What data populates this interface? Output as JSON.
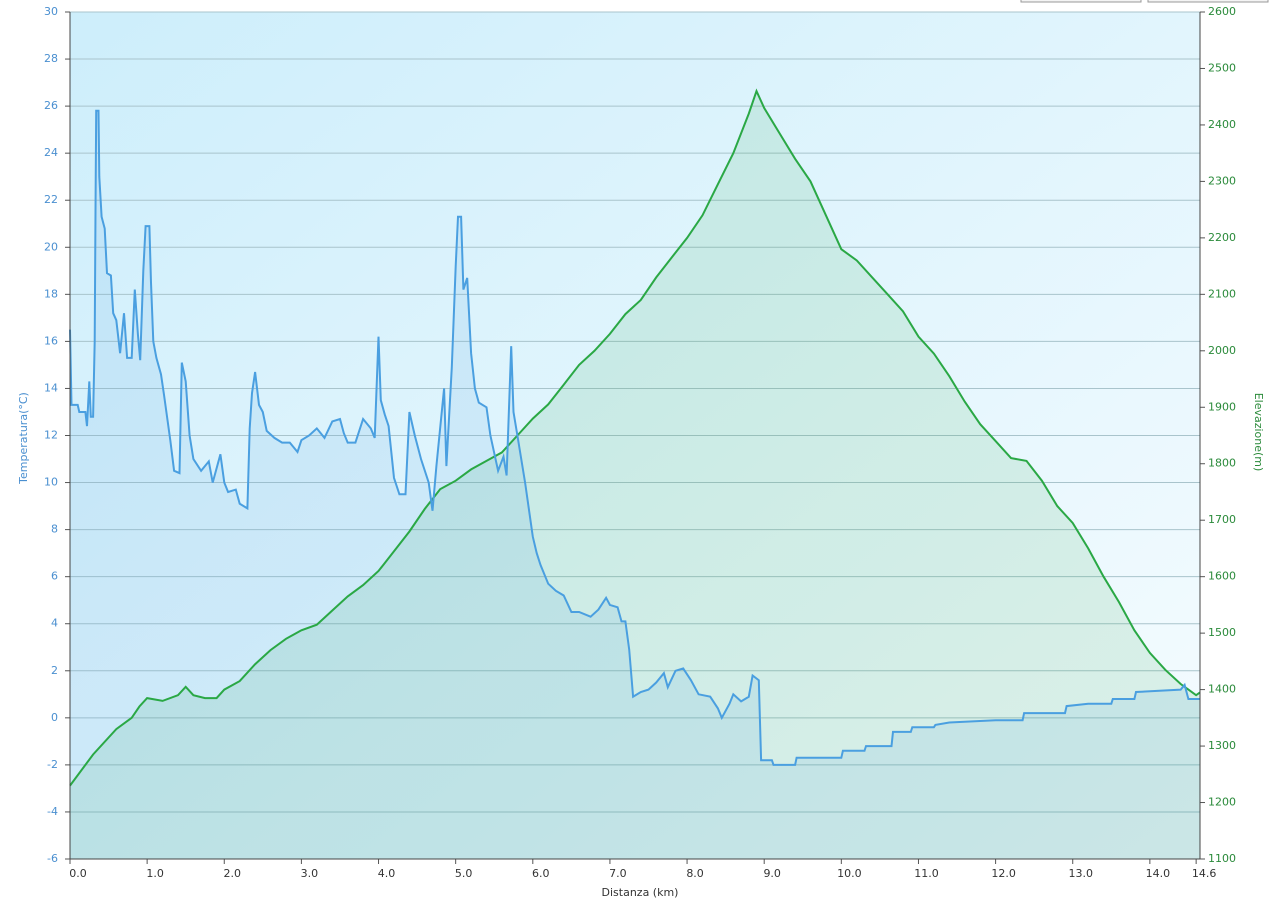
{
  "chart_data": {
    "type": "line",
    "x_label": "Distanza  (km)",
    "y_label": "Temperatura(°C)",
    "y2_label": "Elevazione(m)",
    "xlim": [
      0,
      14.65
    ],
    "xticks": [
      {
        "value": 0,
        "label": "0.0"
      },
      {
        "value": 1,
        "label": "1.0"
      },
      {
        "value": 2,
        "label": "2.0"
      },
      {
        "value": 3,
        "label": "3.0"
      },
      {
        "value": 4,
        "label": "4.0"
      },
      {
        "value": 5,
        "label": "5.0"
      },
      {
        "value": 6,
        "label": "6.0"
      },
      {
        "value": 7,
        "label": "7.0"
      },
      {
        "value": 8,
        "label": "8.0"
      },
      {
        "value": 9,
        "label": "9.0"
      },
      {
        "value": 10,
        "label": "10.0"
      },
      {
        "value": 11,
        "label": "11.0"
      },
      {
        "value": 12,
        "label": "12.0"
      },
      {
        "value": 13,
        "label": "13.0"
      },
      {
        "value": 14,
        "label": "14.0"
      },
      14.6
    ],
    "ylim": [
      -6,
      30
    ],
    "yticks": [
      -6,
      -4,
      -2,
      0,
      2,
      4,
      6,
      8,
      10,
      12,
      14,
      16,
      18,
      20,
      22,
      24,
      26,
      28,
      30
    ],
    "y2lim": [
      1100,
      2600
    ],
    "y2ticks": [
      1100,
      1200,
      1300,
      1400,
      1500,
      1600,
      1700,
      1800,
      1900,
      2000,
      2100,
      2200,
      2300,
      2400,
      2500,
      2600
    ],
    "grid": true,
    "series": [
      {
        "name": "Temperatura",
        "color": "#4a9fe0",
        "axis": "y",
        "x": [
          0,
          0.02,
          0.1,
          0.12,
          0.2,
          0.22,
          0.25,
          0.27,
          0.3,
          0.32,
          0.33,
          0.34,
          0.37,
          0.38,
          0.41,
          0.45,
          0.48,
          0.53,
          0.56,
          0.6,
          0.65,
          0.7,
          0.74,
          0.8,
          0.84,
          0.88,
          0.91,
          0.95,
          0.98,
          1.03,
          1.05,
          1.08,
          1.12,
          1.18,
          1.22,
          1.3,
          1.35,
          1.42,
          1.45,
          1.5,
          1.55,
          1.6,
          1.7,
          1.8,
          1.85,
          1.95,
          2.0,
          2.05,
          2.15,
          2.2,
          2.3,
          2.33,
          2.36,
          2.4,
          2.45,
          2.5,
          2.55,
          2.65,
          2.75,
          2.85,
          2.95,
          3.0,
          3.1,
          3.2,
          3.3,
          3.4,
          3.5,
          3.55,
          3.6,
          3.7,
          3.8,
          3.9,
          3.95,
          4.0,
          4.03,
          4.08,
          4.13,
          4.2,
          4.27,
          4.35,
          4.4,
          4.47,
          4.55,
          4.65,
          4.7,
          4.75,
          4.85,
          4.88,
          4.95,
          5.0,
          5.03,
          5.07,
          5.1,
          5.15,
          5.2,
          5.25,
          5.3,
          5.4,
          5.45,
          5.55,
          5.62,
          5.66,
          5.72,
          5.75,
          5.8,
          5.9,
          6.0,
          6.05,
          6.1,
          6.2,
          6.3,
          6.4,
          6.5,
          6.6,
          6.75,
          6.85,
          6.95,
          7.0,
          7.1,
          7.15,
          7.2,
          7.25,
          7.3,
          7.4,
          7.5,
          7.6,
          7.7,
          7.75,
          7.85,
          7.95,
          8.05,
          8.15,
          8.3,
          8.4,
          8.45,
          8.55,
          8.6,
          8.7,
          8.8,
          8.85,
          8.93,
          8.96,
          9.1,
          9.12,
          9.4,
          9.42,
          10.0,
          10.02,
          10.3,
          10.32,
          10.65,
          10.67,
          10.9,
          10.92,
          11.2,
          11.22,
          11.4,
          12.0,
          12.35,
          12.37,
          12.9,
          12.92,
          13.2,
          13.5,
          13.52,
          13.8,
          13.82,
          14.4,
          14.45,
          14.5,
          14.65
        ],
        "values": [
          16.5,
          13.3,
          13.3,
          13,
          13,
          12.4,
          14.3,
          12.8,
          12.8,
          16,
          21.5,
          25.8,
          25.8,
          23,
          21.3,
          20.8,
          18.9,
          18.8,
          17.2,
          16.9,
          15.5,
          17.2,
          15.3,
          15.3,
          18.2,
          16.3,
          15.2,
          19,
          20.9,
          20.9,
          18.5,
          16,
          15.3,
          14.6,
          13.7,
          11.8,
          10.5,
          10.4,
          15.1,
          14.3,
          12,
          11,
          10.5,
          10.9,
          10,
          11.2,
          10,
          9.6,
          9.7,
          9.1,
          8.9,
          12.3,
          13.8,
          14.7,
          13.3,
          13,
          12.2,
          11.9,
          11.7,
          11.7,
          11.3,
          11.8,
          12,
          12.3,
          11.9,
          12.6,
          12.7,
          12.1,
          11.7,
          11.7,
          12.7,
          12.3,
          11.9,
          16.2,
          13.5,
          12.9,
          12.4,
          10.2,
          9.5,
          9.5,
          13,
          12,
          11,
          10,
          8.8,
          10.7,
          14,
          10.7,
          14.9,
          19.2,
          21.3,
          21.3,
          18.2,
          18.7,
          15.5,
          14,
          13.4,
          13.2,
          12,
          10.5,
          11.1,
          10.3,
          15.8,
          13,
          12,
          10,
          7.7,
          7,
          6.5,
          5.7,
          5.4,
          5.2,
          4.5,
          4.5,
          4.3,
          4.6,
          5.1,
          4.8,
          4.7,
          4.1,
          4.1,
          2.9,
          0.9,
          1.1,
          1.2,
          1.5,
          1.9,
          1.3,
          2,
          2.1,
          1.6,
          1,
          0.9,
          0.4,
          0,
          0.6,
          1,
          0.7,
          0.9,
          1.8,
          1.6,
          -1.8,
          -1.8,
          -2,
          -2,
          -1.7,
          -1.7,
          -1.4,
          -1.4,
          -1.2,
          -1.2,
          -0.6,
          -0.6,
          -0.4,
          -0.4,
          -0.3,
          -0.2,
          -0.1,
          -0.1,
          0.2,
          0.2,
          0.5,
          0.6,
          0.6,
          0.8,
          0.8,
          1.1,
          1.2,
          1.4,
          0.8,
          0.8
        ]
      },
      {
        "name": "Elevazione",
        "color": "#2aa845",
        "axis": "y2",
        "x": [
          0,
          0.3,
          0.6,
          0.8,
          0.9,
          1.0,
          1.2,
          1.4,
          1.5,
          1.6,
          1.75,
          1.9,
          2.0,
          2.2,
          2.4,
          2.6,
          2.8,
          3.0,
          3.2,
          3.4,
          3.6,
          3.8,
          4.0,
          4.2,
          4.4,
          4.6,
          4.8,
          5.0,
          5.2,
          5.4,
          5.6,
          5.8,
          6.0,
          6.2,
          6.4,
          6.6,
          6.8,
          7.0,
          7.2,
          7.4,
          7.6,
          7.8,
          8.0,
          8.2,
          8.4,
          8.6,
          8.8,
          8.9,
          9.0,
          9.2,
          9.4,
          9.6,
          9.8,
          10.0,
          10.2,
          10.4,
          10.6,
          10.8,
          11.0,
          11.2,
          11.4,
          11.6,
          11.8,
          12.0,
          12.2,
          12.4,
          12.6,
          12.8,
          13.0,
          13.2,
          13.4,
          13.6,
          13.8,
          14.0,
          14.2,
          14.4,
          14.5,
          14.6,
          14.65
        ],
        "values": [
          1230,
          1285,
          1330,
          1350,
          1370,
          1385,
          1380,
          1390,
          1405,
          1390,
          1385,
          1385,
          1400,
          1415,
          1445,
          1470,
          1490,
          1505,
          1515,
          1540,
          1565,
          1585,
          1610,
          1645,
          1680,
          1720,
          1755,
          1770,
          1790,
          1805,
          1820,
          1850,
          1880,
          1905,
          1940,
          1975,
          2000,
          2030,
          2065,
          2090,
          2130,
          2165,
          2200,
          2240,
          2295,
          2350,
          2420,
          2460,
          2430,
          2385,
          2340,
          2300,
          2240,
          2180,
          2160,
          2130,
          2100,
          2070,
          2025,
          1995,
          1955,
          1910,
          1870,
          1840,
          1810,
          1805,
          1770,
          1725,
          1695,
          1650,
          1600,
          1555,
          1505,
          1465,
          1435,
          1410,
          1400,
          1390,
          1395
        ]
      }
    ]
  }
}
